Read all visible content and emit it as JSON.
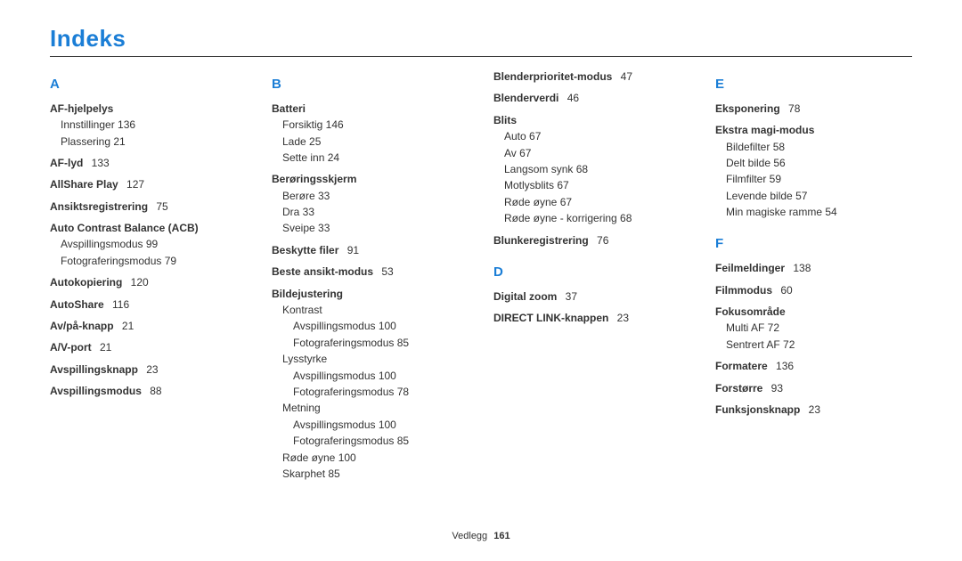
{
  "accent_color": "#1b7ed6",
  "title": "Indeks",
  "footer": {
    "section": "Vedlegg",
    "page": "161"
  },
  "columns": [
    [
      {
        "type": "letter",
        "text": "A"
      },
      {
        "type": "entry",
        "text": "AF-hjelpelys"
      },
      {
        "type": "sub",
        "text": "Innstillinger  136"
      },
      {
        "type": "sub",
        "text": "Plassering  21"
      },
      {
        "type": "entry",
        "text": "AF-lyd",
        "page": "133"
      },
      {
        "type": "entry",
        "text": "AllShare Play",
        "page": "127"
      },
      {
        "type": "entry",
        "text": "Ansiktsregistrering",
        "page": "75"
      },
      {
        "type": "entry",
        "text": "Auto Contrast Balance (ACB)"
      },
      {
        "type": "sub",
        "text": "Avspillingsmodus  99"
      },
      {
        "type": "sub",
        "text": "Fotograferingsmodus  79"
      },
      {
        "type": "entry",
        "text": "Autokopiering",
        "page": "120"
      },
      {
        "type": "entry",
        "text": "AutoShare",
        "page": "116"
      },
      {
        "type": "entry",
        "text": "Av/på-knapp",
        "page": "21"
      },
      {
        "type": "entry",
        "text": "A/V-port",
        "page": "21"
      },
      {
        "type": "entry",
        "text": "Avspillingsknapp",
        "page": "23"
      },
      {
        "type": "entry",
        "text": "Avspillingsmodus",
        "page": "88"
      }
    ],
    [
      {
        "type": "letter",
        "text": "B"
      },
      {
        "type": "entry",
        "text": "Batteri"
      },
      {
        "type": "sub",
        "text": "Forsiktig  146"
      },
      {
        "type": "sub",
        "text": "Lade  25"
      },
      {
        "type": "sub",
        "text": "Sette inn  24"
      },
      {
        "type": "entry",
        "text": "Berøringsskjerm"
      },
      {
        "type": "sub",
        "text": "Berøre  33"
      },
      {
        "type": "sub",
        "text": "Dra  33"
      },
      {
        "type": "sub",
        "text": "Sveipe  33"
      },
      {
        "type": "entry",
        "text": "Beskytte filer",
        "page": "91"
      },
      {
        "type": "entry",
        "text": "Beste ansikt-modus",
        "page": "53"
      },
      {
        "type": "entry",
        "text": "Bildejustering"
      },
      {
        "type": "sub",
        "text": "Kontrast"
      },
      {
        "type": "sub2",
        "text": "Avspillingsmodus  100"
      },
      {
        "type": "sub2",
        "text": "Fotograferingsmodus  85"
      },
      {
        "type": "sub",
        "text": "Lysstyrke"
      },
      {
        "type": "sub2",
        "text": "Avspillingsmodus  100"
      },
      {
        "type": "sub2",
        "text": "Fotograferingsmodus  78"
      },
      {
        "type": "sub",
        "text": "Metning"
      },
      {
        "type": "sub2",
        "text": "Avspillingsmodus  100"
      },
      {
        "type": "sub2",
        "text": "Fotograferingsmodus  85"
      },
      {
        "type": "sub",
        "text": "Røde øyne  100"
      },
      {
        "type": "sub",
        "text": "Skarphet  85"
      }
    ],
    [
      {
        "type": "entry",
        "text": "Blenderprioritet-modus",
        "page": "47",
        "first": true
      },
      {
        "type": "entry",
        "text": "Blenderverdi",
        "page": "46"
      },
      {
        "type": "entry",
        "text": "Blits"
      },
      {
        "type": "sub",
        "text": "Auto  67"
      },
      {
        "type": "sub",
        "text": "Av  67"
      },
      {
        "type": "sub",
        "text": "Langsom synk  68"
      },
      {
        "type": "sub",
        "text": "Motlysblits  67"
      },
      {
        "type": "sub",
        "text": "Røde øyne  67"
      },
      {
        "type": "sub",
        "text": "Røde øyne - korrigering  68"
      },
      {
        "type": "entry",
        "text": "Blunkeregistrering",
        "page": "76"
      },
      {
        "type": "letter",
        "text": "D"
      },
      {
        "type": "entry",
        "text": "Digital zoom",
        "page": "37"
      },
      {
        "type": "entry",
        "text": "DIRECT LINK-knappen",
        "page": "23"
      }
    ],
    [
      {
        "type": "letter",
        "text": "E"
      },
      {
        "type": "entry",
        "text": "Eksponering",
        "page": "78"
      },
      {
        "type": "entry",
        "text": "Ekstra magi-modus"
      },
      {
        "type": "sub",
        "text": "Bildefilter  58"
      },
      {
        "type": "sub",
        "text": "Delt bilde  56"
      },
      {
        "type": "sub",
        "text": "Filmfilter  59"
      },
      {
        "type": "sub",
        "text": "Levende bilde  57"
      },
      {
        "type": "sub",
        "text": "Min magiske ramme  54"
      },
      {
        "type": "letter",
        "text": "F"
      },
      {
        "type": "entry",
        "text": "Feilmeldinger",
        "page": "138"
      },
      {
        "type": "entry",
        "text": "Filmmodus",
        "page": "60"
      },
      {
        "type": "entry",
        "text": "Fokusområde"
      },
      {
        "type": "sub",
        "text": "Multi AF  72"
      },
      {
        "type": "sub",
        "text": "Sentrert AF  72"
      },
      {
        "type": "entry",
        "text": "Formatere",
        "page": "136"
      },
      {
        "type": "entry",
        "text": "Forstørre",
        "page": "93"
      },
      {
        "type": "entry",
        "text": "Funksjonsknapp",
        "page": "23"
      }
    ]
  ]
}
